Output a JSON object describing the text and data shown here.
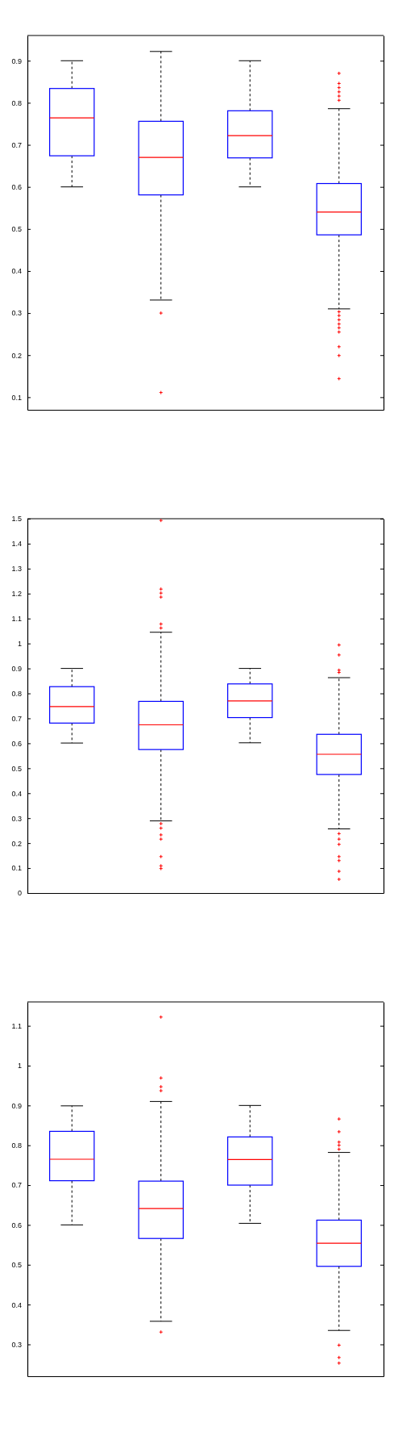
{
  "chart_data": [
    {
      "type": "box",
      "categories": [
        null,
        null,
        null,
        null
      ],
      "color": "#0000ff",
      "ylim": [
        0.07,
        0.96
      ],
      "yticks": [
        {
          "value": 0.1,
          "label": "0.1"
        },
        {
          "value": 0.2,
          "label": "0.2"
        },
        {
          "value": 0.3,
          "label": "0.3"
        },
        {
          "value": 0.4,
          "label": "0.4"
        },
        {
          "value": 0.5,
          "label": "0.5"
        },
        {
          "value": 0.6,
          "label": "0.6"
        },
        {
          "value": 0.7,
          "label": "0.7"
        },
        {
          "value": 0.8,
          "label": "0.8"
        },
        {
          "value": 0.9,
          "label": "0.9"
        }
      ],
      "tick_labels": "y",
      "grid": false,
      "boxes": [
        {
          "low": 0.6,
          "q1": 0.674,
          "median": 0.764,
          "q3": 0.834,
          "high": 0.9
        },
        {
          "low": 0.331,
          "q1": 0.581,
          "median": 0.67,
          "q3": 0.756,
          "high": 0.922,
          "outliers": [
            0.3,
            0.111
          ]
        },
        {
          "low": 0.6,
          "q1": 0.669,
          "median": 0.722,
          "q3": 0.781,
          "high": 0.9
        },
        {
          "low": 0.31,
          "q1": 0.486,
          "median": 0.54,
          "q3": 0.608,
          "high": 0.786,
          "outliers": [
            0.87,
            0.846,
            0.836,
            0.826,
            0.816,
            0.806,
            0.303,
            0.294,
            0.284,
            0.274,
            0.265,
            0.255,
            0.22,
            0.199,
            0.144
          ]
        }
      ]
    },
    {
      "type": "box",
      "categories": [
        null,
        null,
        null,
        null
      ],
      "color": "#0000ff",
      "ylim": [
        0,
        1.5
      ],
      "yticks": [
        0,
        0.1,
        0.2,
        0.3,
        0.4,
        0.5,
        0.6,
        0.7,
        0.8,
        0.9,
        1,
        1.1,
        1.2,
        1.3,
        1.4,
        1.5
      ],
      "tick_labels": "y",
      "grid": false,
      "boxes": [
        {
          "low": 0.601,
          "q1": 0.681,
          "median": 0.747,
          "q3": 0.827,
          "high": 0.9
        },
        {
          "low": 0.289,
          "q1": 0.575,
          "median": 0.674,
          "q3": 0.768,
          "high": 1.045,
          "outliers": [
            1.493,
            1.218,
            1.202,
            1.186,
            1.078,
            1.062,
            0.278,
            0.26,
            0.233,
            0.216,
            0.146,
            0.109,
            0.098
          ]
        },
        {
          "low": 0.602,
          "q1": 0.703,
          "median": 0.77,
          "q3": 0.838,
          "high": 0.9
        },
        {
          "low": 0.257,
          "q1": 0.475,
          "median": 0.556,
          "q3": 0.636,
          "high": 0.863,
          "outliers": [
            0.994,
            0.954,
            0.893,
            0.884,
            0.238,
            0.216,
            0.195,
            0.146,
            0.13,
            0.087,
            0.055
          ]
        }
      ]
    },
    {
      "type": "box",
      "categories": [
        null,
        null,
        null,
        null
      ],
      "color": "#0000ff",
      "ylim": [
        0.22,
        1.16
      ],
      "yticks": [
        {
          "value": 0.3,
          "label": "0.3"
        },
        {
          "value": 0.4,
          "label": "0.4"
        },
        {
          "value": 0.5,
          "label": "0.5"
        },
        {
          "value": 0.6,
          "label": "0.6"
        },
        {
          "value": 0.7,
          "label": "0.7"
        },
        {
          "value": 0.8,
          "label": "0.8"
        },
        {
          "value": 0.9,
          "label": "0.9"
        },
        {
          "value": 1,
          "label": "1"
        },
        {
          "value": 1.1,
          "label": "1.1"
        }
      ],
      "tick_labels": "y",
      "grid": false,
      "boxes": [
        {
          "low": 0.6,
          "q1": 0.711,
          "median": 0.765,
          "q3": 0.835,
          "high": 0.899
        },
        {
          "low": 0.358,
          "q1": 0.566,
          "median": 0.641,
          "q3": 0.71,
          "high": 0.91,
          "outliers": [
            1.122,
            0.969,
            0.947,
            0.937,
            0.331
          ]
        },
        {
          "low": 0.604,
          "q1": 0.7,
          "median": 0.764,
          "q3": 0.821,
          "high": 0.9
        },
        {
          "low": 0.335,
          "q1": 0.496,
          "median": 0.554,
          "q3": 0.612,
          "high": 0.782,
          "outliers": [
            0.866,
            0.834,
            0.808,
            0.8,
            0.79,
            0.298,
            0.267,
            0.253
          ]
        }
      ]
    }
  ]
}
